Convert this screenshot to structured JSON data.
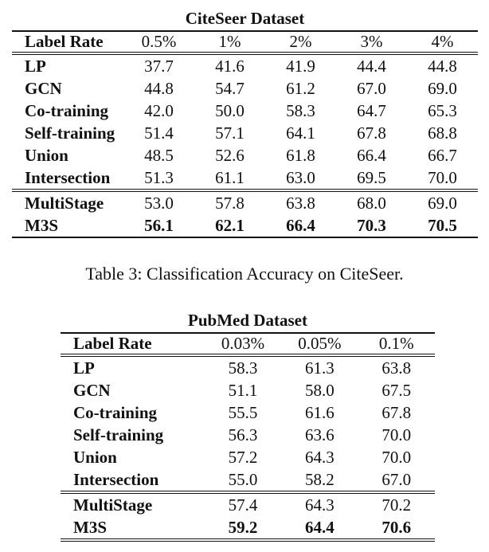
{
  "page": {
    "caption": "Table 3: Classification Accuracy on CiteSeer."
  },
  "tables": [
    {
      "id": "citeseer",
      "title": "CiteSeer Dataset",
      "header": [
        "Label Rate",
        "0.5%",
        "1%",
        "2%",
        "3%",
        "4%"
      ],
      "groups": [
        {
          "rows": [
            {
              "label": "LP",
              "values": [
                "37.7",
                "41.6",
                "41.9",
                "44.4",
                "44.8"
              ],
              "bold_values": false
            },
            {
              "label": "GCN",
              "values": [
                "44.8",
                "54.7",
                "61.2",
                "67.0",
                "69.0"
              ],
              "bold_values": false
            },
            {
              "label": "Co-training",
              "values": [
                "42.0",
                "50.0",
                "58.3",
                "64.7",
                "65.3"
              ],
              "bold_values": false
            },
            {
              "label": "Self-training",
              "values": [
                "51.4",
                "57.1",
                "64.1",
                "67.8",
                "68.8"
              ],
              "bold_values": false
            },
            {
              "label": "Union",
              "values": [
                "48.5",
                "52.6",
                "61.8",
                "66.4",
                "66.7"
              ],
              "bold_values": false
            },
            {
              "label": "Intersection",
              "values": [
                "51.3",
                "61.1",
                "63.0",
                "69.5",
                "70.0"
              ],
              "bold_values": false
            }
          ]
        },
        {
          "rows": [
            {
              "label": "MultiStage",
              "values": [
                "53.0",
                "57.8",
                "63.8",
                "68.0",
                "69.0"
              ],
              "bold_values": false
            },
            {
              "label": "M3S",
              "values": [
                "56.1",
                "62.1",
                "66.4",
                "70.3",
                "70.5"
              ],
              "bold_values": true
            }
          ]
        }
      ]
    },
    {
      "id": "pubmed",
      "title": "PubMed Dataset",
      "header": [
        "Label Rate",
        "0.03%",
        "0.05%",
        "0.1%"
      ],
      "groups": [
        {
          "rows": [
            {
              "label": "LP",
              "values": [
                "58.3",
                "61.3",
                "63.8"
              ],
              "bold_values": false
            },
            {
              "label": "GCN",
              "values": [
                "51.1",
                "58.0",
                "67.5"
              ],
              "bold_values": false
            },
            {
              "label": "Co-training",
              "values": [
                "55.5",
                "61.6",
                "67.8"
              ],
              "bold_values": false
            },
            {
              "label": "Self-training",
              "values": [
                "56.3",
                "63.6",
                "70.0"
              ],
              "bold_values": false
            },
            {
              "label": "Union",
              "values": [
                "57.2",
                "64.3",
                "70.0"
              ],
              "bold_values": false
            },
            {
              "label": "Intersection",
              "values": [
                "55.0",
                "58.2",
                "67.0"
              ],
              "bold_values": false
            }
          ]
        },
        {
          "rows": [
            {
              "label": "MultiStage",
              "values": [
                "57.4",
                "64.3",
                "70.2"
              ],
              "bold_values": false
            },
            {
              "label": "M3S",
              "values": [
                "59.2",
                "64.4",
                "70.6"
              ],
              "bold_values": true
            }
          ]
        }
      ]
    }
  ]
}
